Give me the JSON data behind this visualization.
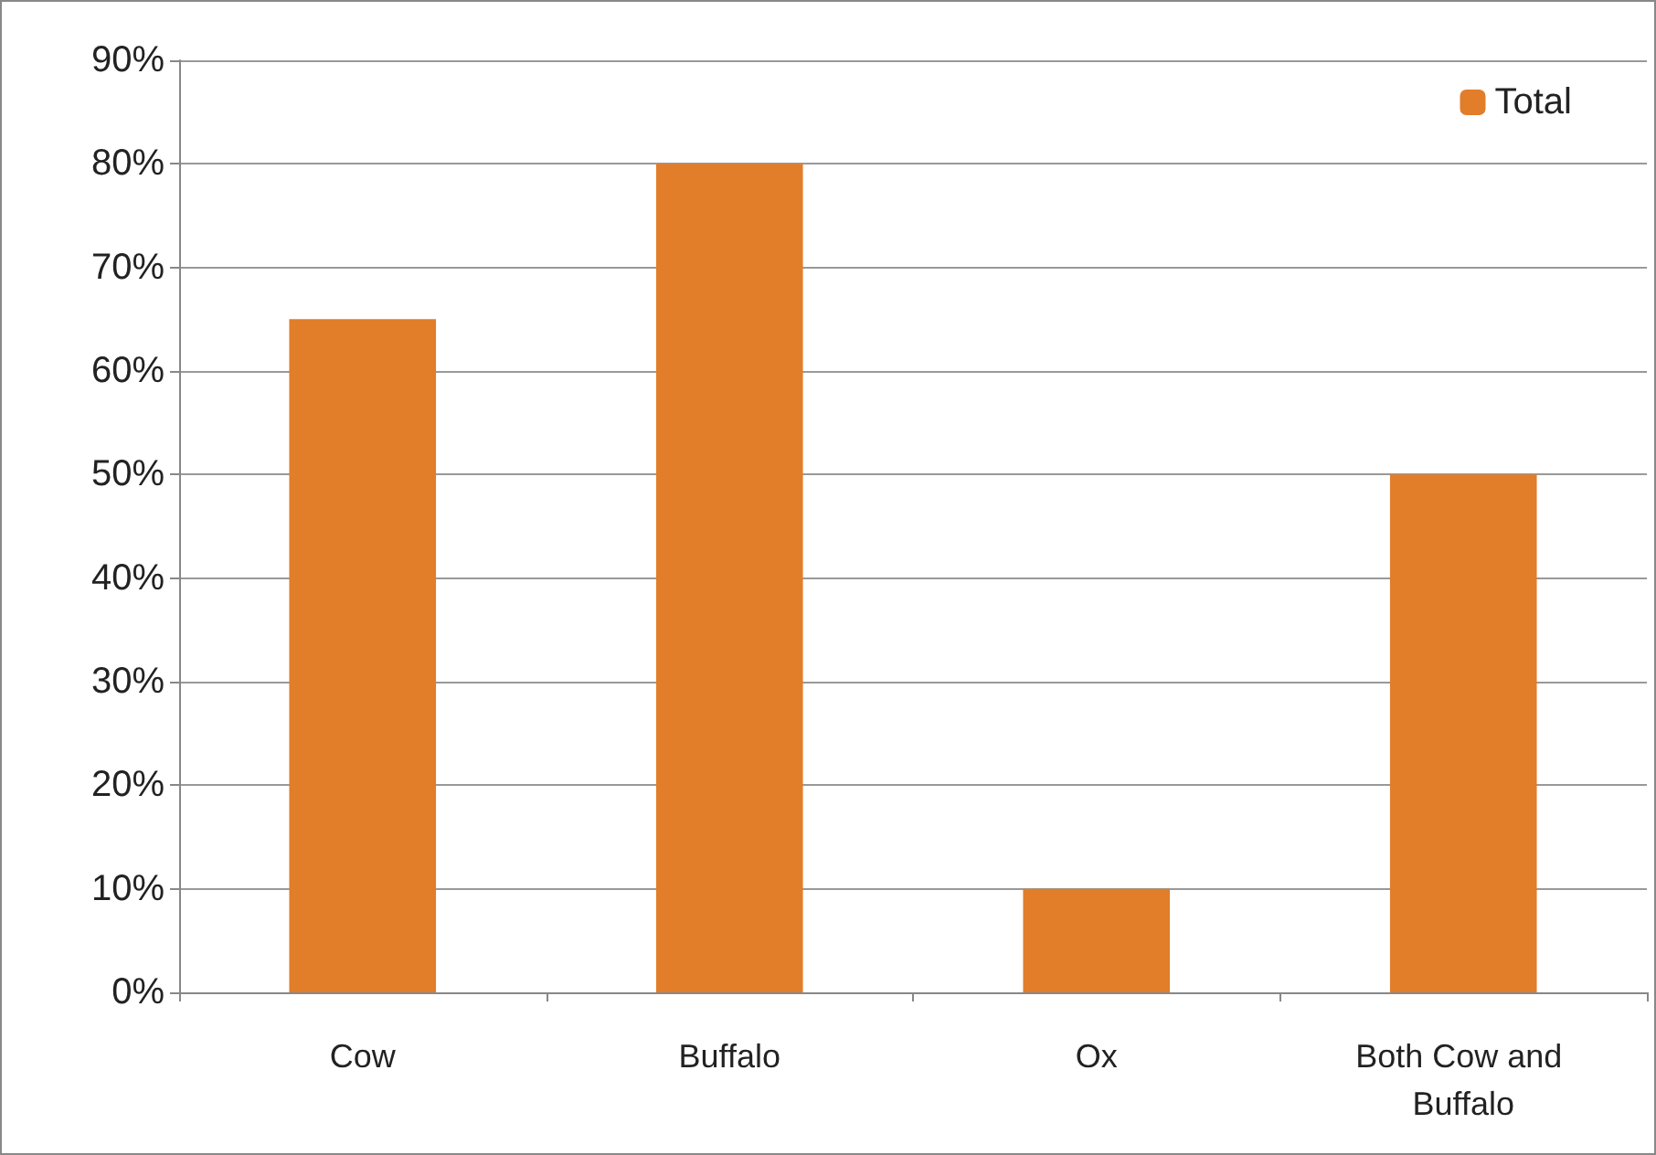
{
  "chart_data": {
    "type": "bar",
    "categories": [
      "Cow",
      "Buffalo",
      "Ox",
      "Both Cow and Buffalo"
    ],
    "series": [
      {
        "name": "Total",
        "color": "#e27d2a",
        "values": [
          65,
          80,
          10,
          50
        ]
      }
    ],
    "ylim": [
      0,
      90
    ],
    "yticks": [
      {
        "value": 0,
        "label": "0%"
      },
      {
        "value": 10,
        "label": "10%"
      },
      {
        "value": 20,
        "label": "20%"
      },
      {
        "value": 30,
        "label": "30%"
      },
      {
        "value": 40,
        "label": "40%"
      },
      {
        "value": 50,
        "label": "50%"
      },
      {
        "value": 60,
        "label": "60%"
      },
      {
        "value": 70,
        "label": "70%"
      },
      {
        "value": 80,
        "label": "80%"
      },
      {
        "value": 90,
        "label": "90%"
      }
    ],
    "grid": "y",
    "legend": "top right"
  }
}
